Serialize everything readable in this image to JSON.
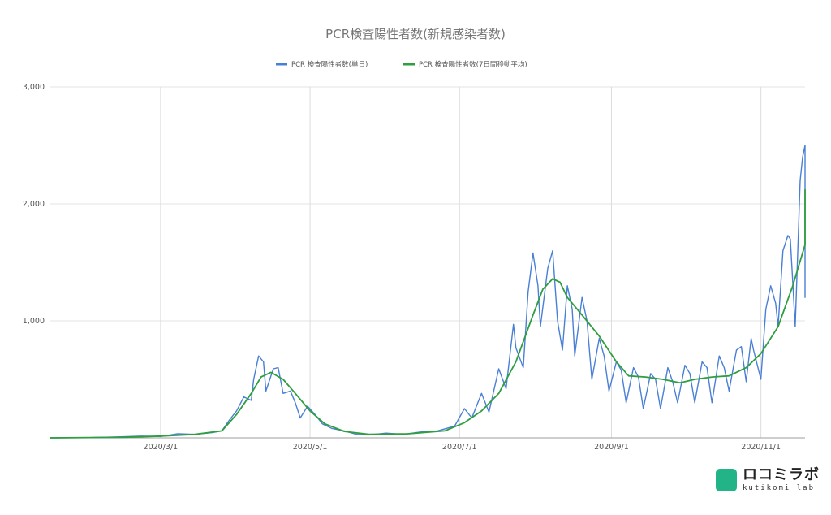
{
  "chart_data": {
    "type": "line",
    "title": "PCR検査陽性者数(新規感染者数)",
    "xlabel": "",
    "ylabel": "",
    "x_range": [
      "2020-01-16",
      "2020-11-19"
    ],
    "x_ticks": [
      "2020/3/1",
      "2020/5/1",
      "2020/7/1",
      "2020/9/1",
      "2020/11/1"
    ],
    "x_tick_dates": [
      "2020-03-01",
      "2020-05-01",
      "2020-07-01",
      "2020-09-01",
      "2020-11-01"
    ],
    "ylim": [
      0,
      3000
    ],
    "y_ticks": [
      "3,000",
      "2,000",
      "1,000"
    ],
    "y_tick_values": [
      3000,
      2000,
      1000
    ],
    "grid": true,
    "legend_position": "top",
    "series": [
      {
        "name": "PCR 検査陽性者数(単日)",
        "color": "#4a7fd6",
        "points": [
          [
            "2020-01-16",
            0
          ],
          [
            "2020-02-01",
            2
          ],
          [
            "2020-02-15",
            10
          ],
          [
            "2020-02-22",
            15
          ],
          [
            "2020-03-01",
            12
          ],
          [
            "2020-03-08",
            35
          ],
          [
            "2020-03-15",
            30
          ],
          [
            "2020-03-22",
            45
          ],
          [
            "2020-03-26",
            60
          ],
          [
            "2020-03-29",
            150
          ],
          [
            "2020-04-01",
            230
          ],
          [
            "2020-04-04",
            350
          ],
          [
            "2020-04-07",
            320
          ],
          [
            "2020-04-08",
            500
          ],
          [
            "2020-04-10",
            700
          ],
          [
            "2020-04-12",
            650
          ],
          [
            "2020-04-13",
            400
          ],
          [
            "2020-04-16",
            590
          ],
          [
            "2020-04-18",
            600
          ],
          [
            "2020-04-20",
            380
          ],
          [
            "2020-04-23",
            400
          ],
          [
            "2020-04-25",
            300
          ],
          [
            "2020-04-27",
            170
          ],
          [
            "2020-04-30",
            270
          ],
          [
            "2020-05-03",
            200
          ],
          [
            "2020-05-06",
            120
          ],
          [
            "2020-05-10",
            80
          ],
          [
            "2020-05-15",
            60
          ],
          [
            "2020-05-20",
            30
          ],
          [
            "2020-05-25",
            25
          ],
          [
            "2020-06-01",
            40
          ],
          [
            "2020-06-08",
            30
          ],
          [
            "2020-06-15",
            50
          ],
          [
            "2020-06-22",
            60
          ],
          [
            "2020-06-29",
            100
          ],
          [
            "2020-07-03",
            250
          ],
          [
            "2020-07-06",
            170
          ],
          [
            "2020-07-10",
            380
          ],
          [
            "2020-07-13",
            220
          ],
          [
            "2020-07-17",
            590
          ],
          [
            "2020-07-20",
            420
          ],
          [
            "2020-07-23",
            970
          ],
          [
            "2020-07-24",
            770
          ],
          [
            "2020-07-27",
            600
          ],
          [
            "2020-07-29",
            1250
          ],
          [
            "2020-07-31",
            1580
          ],
          [
            "2020-08-02",
            1300
          ],
          [
            "2020-08-03",
            950
          ],
          [
            "2020-08-06",
            1450
          ],
          [
            "2020-08-08",
            1600
          ],
          [
            "2020-08-10",
            1000
          ],
          [
            "2020-08-12",
            750
          ],
          [
            "2020-08-14",
            1300
          ],
          [
            "2020-08-16",
            1100
          ],
          [
            "2020-08-17",
            700
          ],
          [
            "2020-08-20",
            1200
          ],
          [
            "2020-08-22",
            1000
          ],
          [
            "2020-08-24",
            500
          ],
          [
            "2020-08-27",
            850
          ],
          [
            "2020-08-29",
            700
          ],
          [
            "2020-08-31",
            400
          ],
          [
            "2020-09-03",
            650
          ],
          [
            "2020-09-05",
            580
          ],
          [
            "2020-09-07",
            300
          ],
          [
            "2020-09-10",
            600
          ],
          [
            "2020-09-12",
            520
          ],
          [
            "2020-09-14",
            250
          ],
          [
            "2020-09-17",
            550
          ],
          [
            "2020-09-19",
            500
          ],
          [
            "2020-09-21",
            250
          ],
          [
            "2020-09-24",
            600
          ],
          [
            "2020-09-26",
            480
          ],
          [
            "2020-09-28",
            300
          ],
          [
            "2020-10-01",
            620
          ],
          [
            "2020-10-03",
            550
          ],
          [
            "2020-10-05",
            300
          ],
          [
            "2020-10-08",
            650
          ],
          [
            "2020-10-10",
            600
          ],
          [
            "2020-10-12",
            300
          ],
          [
            "2020-10-15",
            700
          ],
          [
            "2020-10-17",
            600
          ],
          [
            "2020-10-19",
            400
          ],
          [
            "2020-10-22",
            750
          ],
          [
            "2020-10-24",
            780
          ],
          [
            "2020-10-26",
            480
          ],
          [
            "2020-10-28",
            850
          ],
          [
            "2020-10-29",
            750
          ],
          [
            "2020-11-01",
            500
          ],
          [
            "2020-11-03",
            1100
          ],
          [
            "2020-11-05",
            1300
          ],
          [
            "2020-11-07",
            1150
          ],
          [
            "2020-11-08",
            950
          ],
          [
            "2020-11-10",
            1600
          ],
          [
            "2020-11-12",
            1730
          ],
          [
            "2020-11-13",
            1700
          ],
          [
            "2020-11-15",
            950
          ],
          [
            "2020-11-17",
            2200
          ],
          [
            "2020-11-18",
            2400
          ],
          [
            "2020-11-19",
            2500
          ],
          [
            "2020-11-20",
            2100
          ],
          [
            "2020-11-22",
            1700
          ],
          [
            "2020-11-23",
            1200
          ],
          [
            "2020-11-25",
            1900
          ]
        ]
      },
      {
        "name": "PCR 検査陽性者数(7日間移動平均)",
        "color": "#2e9e3f",
        "points": [
          [
            "2020-01-16",
            0
          ],
          [
            "2020-02-15",
            5
          ],
          [
            "2020-03-01",
            15
          ],
          [
            "2020-03-15",
            30
          ],
          [
            "2020-03-26",
            60
          ],
          [
            "2020-04-01",
            200
          ],
          [
            "2020-04-07",
            380
          ],
          [
            "2020-04-11",
            520
          ],
          [
            "2020-04-15",
            560
          ],
          [
            "2020-04-20",
            500
          ],
          [
            "2020-04-25",
            380
          ],
          [
            "2020-05-01",
            230
          ],
          [
            "2020-05-07",
            120
          ],
          [
            "2020-05-15",
            55
          ],
          [
            "2020-05-25",
            30
          ],
          [
            "2020-06-10",
            35
          ],
          [
            "2020-06-25",
            60
          ],
          [
            "2020-07-03",
            130
          ],
          [
            "2020-07-10",
            230
          ],
          [
            "2020-07-17",
            380
          ],
          [
            "2020-07-24",
            650
          ],
          [
            "2020-07-31",
            1050
          ],
          [
            "2020-08-04",
            1270
          ],
          [
            "2020-08-08",
            1360
          ],
          [
            "2020-08-11",
            1330
          ],
          [
            "2020-08-14",
            1200
          ],
          [
            "2020-08-20",
            1050
          ],
          [
            "2020-08-27",
            870
          ],
          [
            "2020-09-03",
            650
          ],
          [
            "2020-09-08",
            530
          ],
          [
            "2020-09-15",
            520
          ],
          [
            "2020-09-22",
            500
          ],
          [
            "2020-09-29",
            470
          ],
          [
            "2020-10-05",
            500
          ],
          [
            "2020-10-12",
            520
          ],
          [
            "2020-10-19",
            530
          ],
          [
            "2020-10-26",
            600
          ],
          [
            "2020-11-01",
            720
          ],
          [
            "2020-11-08",
            950
          ],
          [
            "2020-11-14",
            1300
          ],
          [
            "2020-11-19",
            1650
          ],
          [
            "2020-11-22",
            1950
          ],
          [
            "2020-11-24",
            2120
          ],
          [
            "2020-11-26",
            2000
          ]
        ]
      }
    ]
  },
  "brand": {
    "name_jp": "ロコミラボ",
    "name_en": "kutikomi lab",
    "color": "#22b387"
  }
}
